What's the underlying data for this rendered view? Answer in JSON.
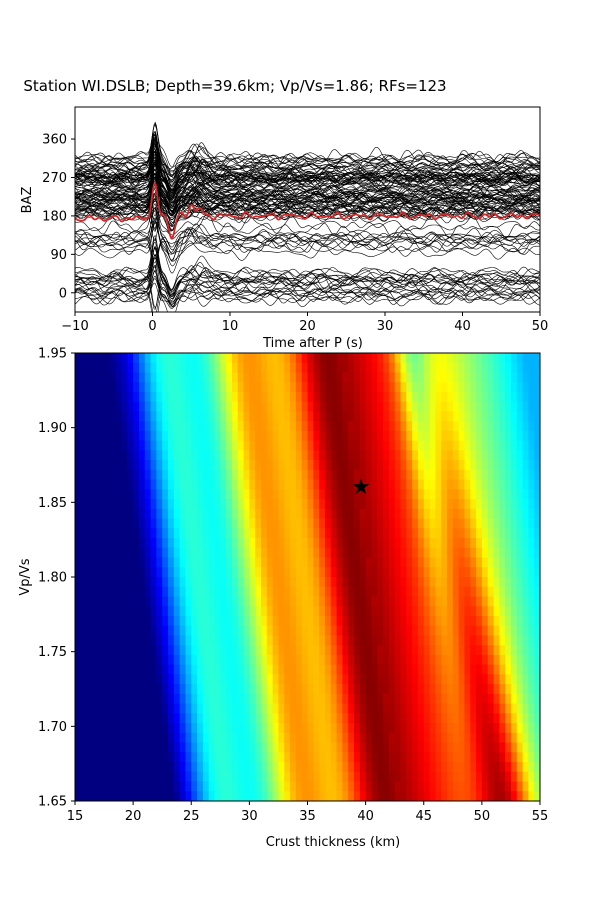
{
  "title": "Station WI.DSLB; Depth=39.6km; Vp/Vs=1.86; RFs=123",
  "chart_data": [
    {
      "type": "line",
      "xlabel": "Time after P (s)",
      "ylabel": "BAZ",
      "xlim": [
        -10,
        50
      ],
      "ylim": [
        -45,
        435
      ],
      "xticks": [
        "−10",
        "0",
        "10",
        "20",
        "30",
        "40",
        "50"
      ],
      "xtick_values": [
        -10,
        0,
        10,
        20,
        30,
        40,
        50
      ],
      "yticks": [
        "0",
        "90",
        "180",
        "270",
        "360"
      ],
      "ytick_values": [
        0,
        90,
        180,
        270,
        360
      ],
      "trace_count": 123,
      "trace_color": "#000000",
      "stack_color": "#d62728",
      "stack_baseline": 180,
      "stack_peaks": [
        {
          "t": 0.3,
          "amp": 70
        },
        {
          "t": 2.5,
          "amp": -50
        },
        {
          "t": 5.0,
          "amp": 25
        },
        {
          "t": 6.0,
          "amp": 18
        }
      ],
      "grid": false
    },
    {
      "type": "heatmap",
      "xlabel": "Crust thickness (km)",
      "ylabel": "Vp/Vs",
      "xlim": [
        15,
        55
      ],
      "ylim": [
        1.65,
        1.95
      ],
      "xticks": [
        "15",
        "20",
        "25",
        "30",
        "35",
        "40",
        "45",
        "50",
        "55"
      ],
      "xtick_values": [
        15,
        20,
        25,
        30,
        35,
        40,
        45,
        50,
        55
      ],
      "yticks": [
        "1.65",
        "1.70",
        "1.75",
        "1.80",
        "1.85",
        "1.90",
        "1.95"
      ],
      "ytick_values": [
        1.65,
        1.7,
        1.75,
        1.8,
        1.85,
        1.9,
        1.95
      ],
      "colormap": "jet",
      "best_fit": {
        "thickness": 39.6,
        "vpvs": 1.86,
        "marker": "star",
        "color": "#000000"
      },
      "grid": false
    }
  ]
}
